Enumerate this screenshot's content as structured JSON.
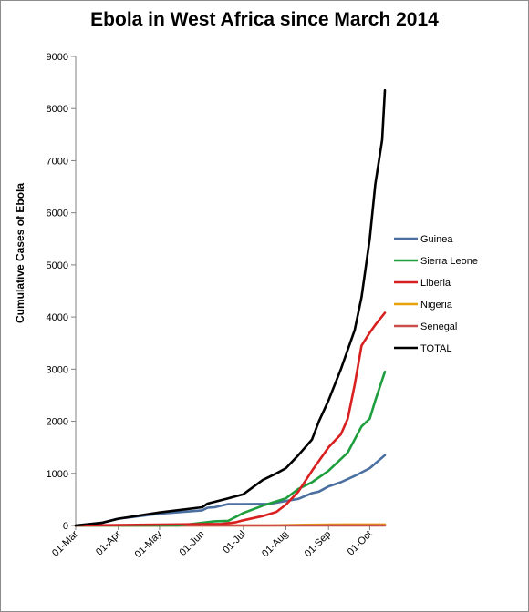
{
  "chart_data": {
    "type": "line",
    "title": "Ebola in West Africa since March 2014",
    "xlabel": "",
    "ylabel": "Cumulative Cases of Ebola",
    "ylim": [
      0,
      9000
    ],
    "yticks": [
      0,
      1000,
      2000,
      3000,
      4000,
      5000,
      6000,
      7000,
      8000,
      9000
    ],
    "xticks": [
      "01-Mar",
      "01-Apr",
      "01-May",
      "01-Jun",
      "01-Jul",
      "01-Aug",
      "01-Sep",
      "01-Oct"
    ],
    "xlim": [
      "2014-03-01",
      "2014-10-12"
    ],
    "grid": false,
    "legend": "right",
    "series": [
      {
        "name": "Guinea",
        "color": "#4a6fa0",
        "points": [
          [
            "2014-03-01",
            0
          ],
          [
            "2014-03-20",
            50
          ],
          [
            "2014-04-01",
            130
          ],
          [
            "2014-05-01",
            225
          ],
          [
            "2014-06-01",
            290
          ],
          [
            "2014-06-05",
            340
          ],
          [
            "2014-06-10",
            350
          ],
          [
            "2014-06-20",
            410
          ],
          [
            "2014-07-01",
            410
          ],
          [
            "2014-07-20",
            415
          ],
          [
            "2014-08-01",
            470
          ],
          [
            "2014-08-10",
            510
          ],
          [
            "2014-08-20",
            620
          ],
          [
            "2014-08-25",
            650
          ],
          [
            "2014-09-01",
            750
          ],
          [
            "2014-09-10",
            830
          ],
          [
            "2014-09-20",
            950
          ],
          [
            "2014-10-01",
            1100
          ],
          [
            "2014-10-12",
            1350
          ]
        ]
      },
      {
        "name": "Sierra Leone",
        "color": "#1f9e3e",
        "points": [
          [
            "2014-03-01",
            0
          ],
          [
            "2014-05-15",
            0
          ],
          [
            "2014-06-01",
            50
          ],
          [
            "2014-06-10",
            80
          ],
          [
            "2014-06-20",
            90
          ],
          [
            "2014-07-01",
            240
          ],
          [
            "2014-07-15",
            380
          ],
          [
            "2014-08-01",
            520
          ],
          [
            "2014-08-10",
            700
          ],
          [
            "2014-08-20",
            830
          ],
          [
            "2014-09-01",
            1050
          ],
          [
            "2014-09-15",
            1400
          ],
          [
            "2014-09-25",
            1900
          ],
          [
            "2014-10-01",
            2050
          ],
          [
            "2014-10-05",
            2400
          ],
          [
            "2014-10-12",
            2950
          ]
        ]
      },
      {
        "name": "Liberia",
        "color": "#d92020",
        "points": [
          [
            "2014-03-01",
            0
          ],
          [
            "2014-06-15",
            30
          ],
          [
            "2014-06-25",
            60
          ],
          [
            "2014-07-01",
            100
          ],
          [
            "2014-07-15",
            180
          ],
          [
            "2014-07-25",
            260
          ],
          [
            "2014-08-01",
            400
          ],
          [
            "2014-08-10",
            650
          ],
          [
            "2014-08-20",
            1050
          ],
          [
            "2014-09-01",
            1500
          ],
          [
            "2014-09-10",
            1750
          ],
          [
            "2014-09-15",
            2050
          ],
          [
            "2014-09-20",
            2700
          ],
          [
            "2014-09-25",
            3450
          ],
          [
            "2014-10-01",
            3700
          ],
          [
            "2014-10-05",
            3850
          ],
          [
            "2014-10-12",
            4080
          ]
        ]
      },
      {
        "name": "Nigeria",
        "color": "#e8a20c",
        "points": [
          [
            "2014-03-01",
            0
          ],
          [
            "2014-07-20",
            0
          ],
          [
            "2014-08-01",
            5
          ],
          [
            "2014-08-15",
            12
          ],
          [
            "2014-09-01",
            18
          ],
          [
            "2014-10-12",
            20
          ]
        ]
      },
      {
        "name": "Senegal",
        "color": "#c9504a",
        "points": [
          [
            "2014-03-01",
            0
          ],
          [
            "2014-08-25",
            0
          ],
          [
            "2014-09-01",
            1
          ],
          [
            "2014-10-12",
            1
          ]
        ]
      },
      {
        "name": "TOTAL",
        "color": "#000000",
        "points": [
          [
            "2014-03-01",
            0
          ],
          [
            "2014-03-20",
            50
          ],
          [
            "2014-04-01",
            130
          ],
          [
            "2014-05-01",
            250
          ],
          [
            "2014-06-01",
            350
          ],
          [
            "2014-06-05",
            420
          ],
          [
            "2014-06-20",
            520
          ],
          [
            "2014-07-01",
            600
          ],
          [
            "2014-07-15",
            870
          ],
          [
            "2014-07-25",
            1000
          ],
          [
            "2014-08-01",
            1100
          ],
          [
            "2014-08-10",
            1350
          ],
          [
            "2014-08-20",
            1650
          ],
          [
            "2014-08-25",
            2000
          ],
          [
            "2014-09-01",
            2400
          ],
          [
            "2014-09-10",
            3000
          ],
          [
            "2014-09-20",
            3750
          ],
          [
            "2014-09-25",
            4380
          ],
          [
            "2014-10-01",
            5500
          ],
          [
            "2014-10-05",
            6550
          ],
          [
            "2014-10-10",
            7400
          ],
          [
            "2014-10-12",
            8350
          ]
        ]
      }
    ]
  }
}
